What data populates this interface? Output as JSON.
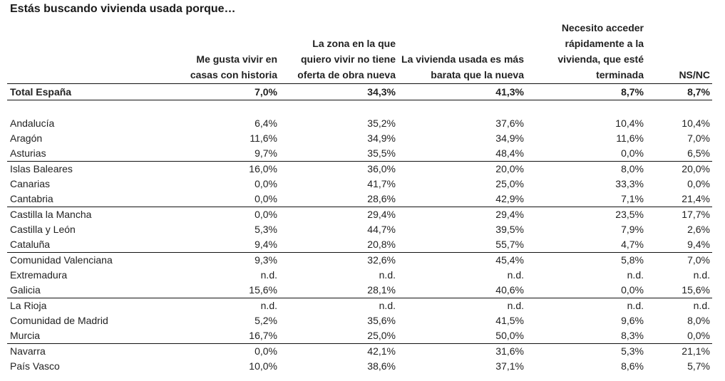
{
  "title": "Estás buscando vivienda usada porque…",
  "columns": [
    "",
    "Me gusta vivir en casas con historia",
    "La zona en la que quiero vivir no tiene oferta de obra nueva",
    "La vivienda usada es más barata que la nueva",
    "Necesito acceder rápidamente a la vivienda, que esté terminada",
    "NS/NC"
  ],
  "total": {
    "name": "Total España",
    "values": [
      "7,0%",
      "34,3%",
      "41,3%",
      "8,7%",
      "8,7%"
    ]
  },
  "rows": [
    {
      "name": "Andalucía",
      "values": [
        "6,4%",
        "35,2%",
        "37,6%",
        "10,4%",
        "10,4%"
      ]
    },
    {
      "name": "Aragón",
      "values": [
        "11,6%",
        "34,9%",
        "34,9%",
        "11,6%",
        "7,0%"
      ]
    },
    {
      "name": "Asturias",
      "values": [
        "9,7%",
        "35,5%",
        "48,4%",
        "0,0%",
        "6,5%"
      ]
    },
    {
      "name": "Islas Baleares",
      "values": [
        "16,0%",
        "36,0%",
        "20,0%",
        "8,0%",
        "20,0%"
      ]
    },
    {
      "name": "Canarias",
      "values": [
        "0,0%",
        "41,7%",
        "25,0%",
        "33,3%",
        "0,0%"
      ]
    },
    {
      "name": "Cantabria",
      "values": [
        "0,0%",
        "28,6%",
        "42,9%",
        "7,1%",
        "21,4%"
      ]
    },
    {
      "name": "Castilla la Mancha",
      "values": [
        "0,0%",
        "29,4%",
        "29,4%",
        "23,5%",
        "17,7%"
      ]
    },
    {
      "name": "Castilla y León",
      "values": [
        "5,3%",
        "44,7%",
        "39,5%",
        "7,9%",
        "2,6%"
      ]
    },
    {
      "name": "Cataluña",
      "values": [
        "9,4%",
        "20,8%",
        "55,7%",
        "4,7%",
        "9,4%"
      ]
    },
    {
      "name": "Comunidad Valenciana",
      "values": [
        "9,3%",
        "32,6%",
        "45,4%",
        "5,8%",
        "7,0%"
      ]
    },
    {
      "name": "Extremadura",
      "values": [
        "n.d.",
        "n.d.",
        "n.d.",
        "n.d.",
        "n.d."
      ]
    },
    {
      "name": "Galicia",
      "values": [
        "15,6%",
        "28,1%",
        "40,6%",
        "0,0%",
        "15,6%"
      ]
    },
    {
      "name": "La Rioja",
      "values": [
        "n.d.",
        "n.d.",
        "n.d.",
        "n.d.",
        "n.d."
      ]
    },
    {
      "name": "Comunidad de Madrid",
      "values": [
        "5,2%",
        "35,6%",
        "41,5%",
        "9,6%",
        "8,0%"
      ]
    },
    {
      "name": "Murcia",
      "values": [
        "16,7%",
        "25,0%",
        "50,0%",
        "8,3%",
        "0,0%"
      ]
    },
    {
      "name": "Navarra",
      "values": [
        "0,0%",
        "42,1%",
        "31,6%",
        "5,3%",
        "21,1%"
      ]
    },
    {
      "name": "País Vasco",
      "values": [
        "10,0%",
        "38,6%",
        "37,1%",
        "8,6%",
        "5,7%"
      ]
    }
  ]
}
